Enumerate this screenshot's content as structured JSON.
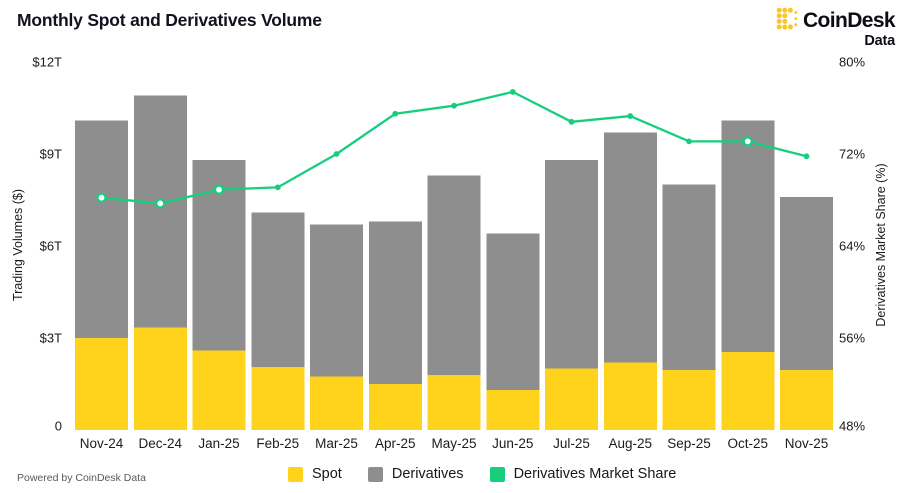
{
  "header": {
    "title": "Monthly Spot and Derivatives Volume",
    "logo_text": "CoinDesk",
    "logo_sub": "Data"
  },
  "footer": {
    "credit": "Powered by CoinDesk Data"
  },
  "colors": {
    "spot_yellow": "#FFD21C",
    "derivatives_gray": "#8E8E8E",
    "share_green": "#17CE7F",
    "logo_yellow": "#F7C627",
    "text_dark": "#1c1c1c"
  },
  "legend": [
    {
      "label": "Spot",
      "color": "#FFD21C"
    },
    {
      "label": "Derivatives",
      "color": "#8E8E8E"
    },
    {
      "label": "Derivatives Market Share",
      "color": "#17CE7F"
    }
  ],
  "axes": {
    "left": {
      "title": "Trading Volumes ($)",
      "ticks": [
        "0",
        "$3T",
        "$6T",
        "$9T",
        "$12T"
      ],
      "values": [
        0,
        3,
        6,
        9,
        12
      ]
    },
    "right": {
      "title": "Derivatives Market Share (%)",
      "ticks": [
        "48%",
        "56%",
        "64%",
        "72%",
        "80%"
      ],
      "values": [
        48,
        56,
        64,
        72,
        80
      ]
    }
  },
  "chart_data": {
    "type": "bar",
    "subtype": "stacked-bars-with-line",
    "title": "Monthly Spot and Derivatives Volume",
    "categories": [
      "Nov-24",
      "Dec-24",
      "Jan-25",
      "Feb-25",
      "Mar-25",
      "Apr-25",
      "May-25",
      "Jun-25",
      "Jul-25",
      "Aug-25",
      "Sep-25",
      "Oct-25",
      "Nov-25"
    ],
    "series": [
      {
        "name": "Spot",
        "type": "bar",
        "stack": "volume",
        "axis": "left",
        "color": "#FFD21C",
        "values": [
          3.0,
          3.35,
          2.6,
          2.05,
          1.75,
          1.5,
          1.8,
          1.3,
          2.0,
          2.2,
          1.95,
          2.55,
          1.95
        ]
      },
      {
        "name": "Derivatives",
        "type": "bar",
        "stack": "volume",
        "axis": "left",
        "color": "#8E8E8E",
        "values": [
          7.1,
          7.55,
          6.2,
          5.05,
          4.95,
          5.3,
          6.5,
          5.1,
          6.8,
          7.5,
          6.05,
          7.55,
          5.65
        ]
      },
      {
        "name": "Derivatives Market Share",
        "type": "line",
        "axis": "right",
        "color": "#17CE7F",
        "values": [
          68.2,
          67.7,
          68.9,
          69.1,
          72.0,
          75.5,
          76.2,
          77.4,
          74.8,
          75.3,
          73.1,
          73.1,
          71.8
        ],
        "hollow_markers": [
          true,
          true,
          true,
          false,
          false,
          false,
          false,
          false,
          false,
          false,
          false,
          true,
          false
        ]
      }
    ],
    "xlabel": "",
    "ylabel_left": "Trading Volumes ($)",
    "ylabel_right": "Derivatives Market Share (%)",
    "ylim_left": [
      0,
      12
    ],
    "ylim_right": [
      48,
      80
    ],
    "grid": false,
    "legend_position": "bottom"
  }
}
